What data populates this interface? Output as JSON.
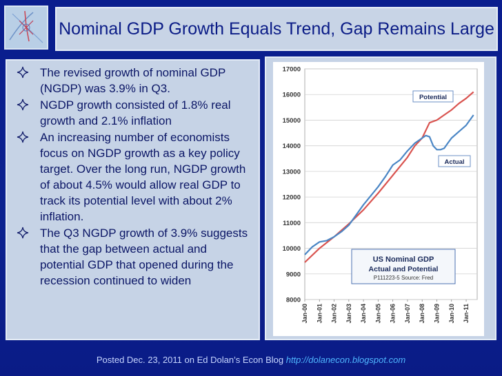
{
  "slide": {
    "title": "Nominal GDP Growth Equals Trend, Gap Remains Large",
    "bullets": [
      "The revised growth of nominal GDP (NGDP) was 3.9% in Q3.",
      "NGDP growth consisted of 1.8% real growth and 2.1% inflation",
      "An increasing number of economists focus on NGDP growth as a key policy target. Over the long run, NGDP growth of about 4.5% would allow real GDP to track its potential level with about 2% inflation.",
      "The Q3 NGDP growth of 3.9% suggests that the gap between actual and potential GDP that opened during the recession continued to widen"
    ],
    "footer_text": "Posted Dec. 23, 2011 on Ed Dolan’s Econ Blog",
    "footer_url": "http://dolanecon.blogspot.com",
    "colors": {
      "background": "#0b1f8f",
      "panel": "#c6d3e6",
      "title_text": "#0a1b86",
      "url": "#4fb6ff"
    }
  },
  "chart_data": {
    "type": "line",
    "title": "US Nominal GDP Actual and Potential",
    "source": "P111223-5 Source: Fred",
    "ylim": [
      8000,
      17000
    ],
    "yticks": [
      "8000",
      "9000",
      "10000",
      "11000",
      "12000",
      "13000",
      "14000",
      "15000",
      "16000",
      "17000"
    ],
    "xlim": [
      2000,
      2011.75
    ],
    "xticks": [
      "Jan-00",
      "Jan-01",
      "Jan-02",
      "Jan-03",
      "Jan-04",
      "Jan-05",
      "Jan-06",
      "Jan-07",
      "Jan-08",
      "Jan-09",
      "Jan-10",
      "Jan-11"
    ],
    "grid": true,
    "series": [
      {
        "name": "Potential",
        "color": "#d9534f",
        "x": [
          2000,
          2001,
          2002,
          2003,
          2004,
          2005,
          2006,
          2007,
          2007.5,
          2008,
          2008.5,
          2009,
          2009.5,
          2010,
          2010.5,
          2011,
          2011.5
        ],
        "values": [
          9450,
          10000,
          10450,
          10950,
          11500,
          12150,
          12850,
          13550,
          14000,
          14300,
          14900,
          15000,
          15200,
          15400,
          15650,
          15850,
          16100
        ]
      },
      {
        "name": "Actual",
        "color": "#4a86c5",
        "x": [
          2000,
          2000.5,
          2001,
          2001.5,
          2002,
          2002.5,
          2003,
          2003.5,
          2004,
          2004.5,
          2005,
          2005.5,
          2006,
          2006.5,
          2007,
          2007.5,
          2008,
          2008.25,
          2008.5,
          2008.75,
          2009,
          2009.25,
          2009.5,
          2009.75,
          2010,
          2010.5,
          2011,
          2011.5
        ],
        "values": [
          9750,
          10050,
          10250,
          10300,
          10450,
          10650,
          10900,
          11300,
          11700,
          12050,
          12400,
          12800,
          13250,
          13450,
          13800,
          14100,
          14300,
          14400,
          14350,
          14000,
          13850,
          13850,
          13900,
          14100,
          14300,
          14550,
          14800,
          15200
        ]
      }
    ],
    "annotations": [
      "Potential",
      "Actual"
    ]
  }
}
